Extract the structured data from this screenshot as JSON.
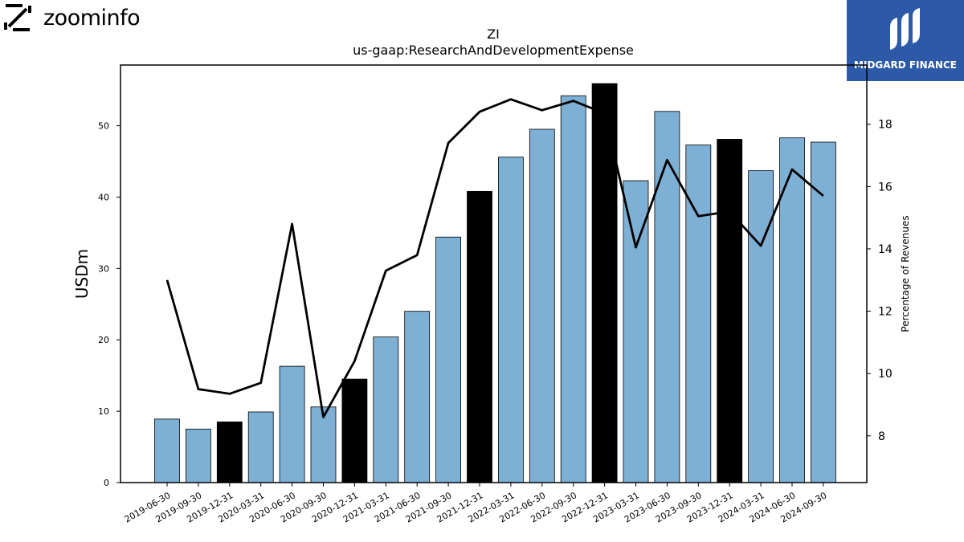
{
  "logos": {
    "left_text": "zoominfo",
    "right_text": "MIDGARD FINANCE"
  },
  "chart_data": {
    "type": "bar",
    "title": "ZI",
    "subtitle": "us-gaap:ResearchAndDevelopmentExpense",
    "ylabel": "USDm",
    "y2label": "Percentage of Revenues",
    "ylim": [
      0,
      58.5
    ],
    "y2lim": [
      6.5,
      19.9
    ],
    "yticks": [
      0,
      10,
      20,
      30,
      40,
      50
    ],
    "y2ticks": [
      8,
      10,
      12,
      14,
      16,
      18
    ],
    "grid": false,
    "categories": [
      "2019-06-30",
      "2019-09-30",
      "2019-12-31",
      "2020-03-31",
      "2020-06-30",
      "2020-09-30",
      "2020-12-31",
      "2021-03-31",
      "2021-06-30",
      "2021-09-30",
      "2021-12-31",
      "2022-03-31",
      "2022-06-30",
      "2022-09-30",
      "2022-12-31",
      "2023-03-31",
      "2023-06-30",
      "2023-09-30",
      "2023-12-31",
      "2024-03-31",
      "2024-06-30",
      "2024-09-30"
    ],
    "series": [
      {
        "axis": "left",
        "type": "bar",
        "values": [
          8.9,
          7.5,
          8.5,
          9.9,
          16.3,
          10.6,
          14.5,
          20.4,
          24.0,
          34.4,
          40.8,
          45.6,
          49.5,
          54.2,
          55.9,
          42.3,
          52.0,
          47.3,
          48.1,
          43.7,
          48.3,
          47.7
        ],
        "color": "#7eb0d5",
        "highlight_color": "#000000",
        "highlight_indices": [
          2,
          6,
          10,
          14,
          18
        ]
      },
      {
        "axis": "right",
        "type": "line",
        "values": [
          13.0,
          9.5,
          9.35,
          9.7,
          14.8,
          8.6,
          10.4,
          13.3,
          13.8,
          17.4,
          18.4,
          18.8,
          18.45,
          18.75,
          18.35,
          14.05,
          16.85,
          15.05,
          15.2,
          14.1,
          16.55,
          15.7
        ],
        "color": "#000000"
      }
    ]
  }
}
